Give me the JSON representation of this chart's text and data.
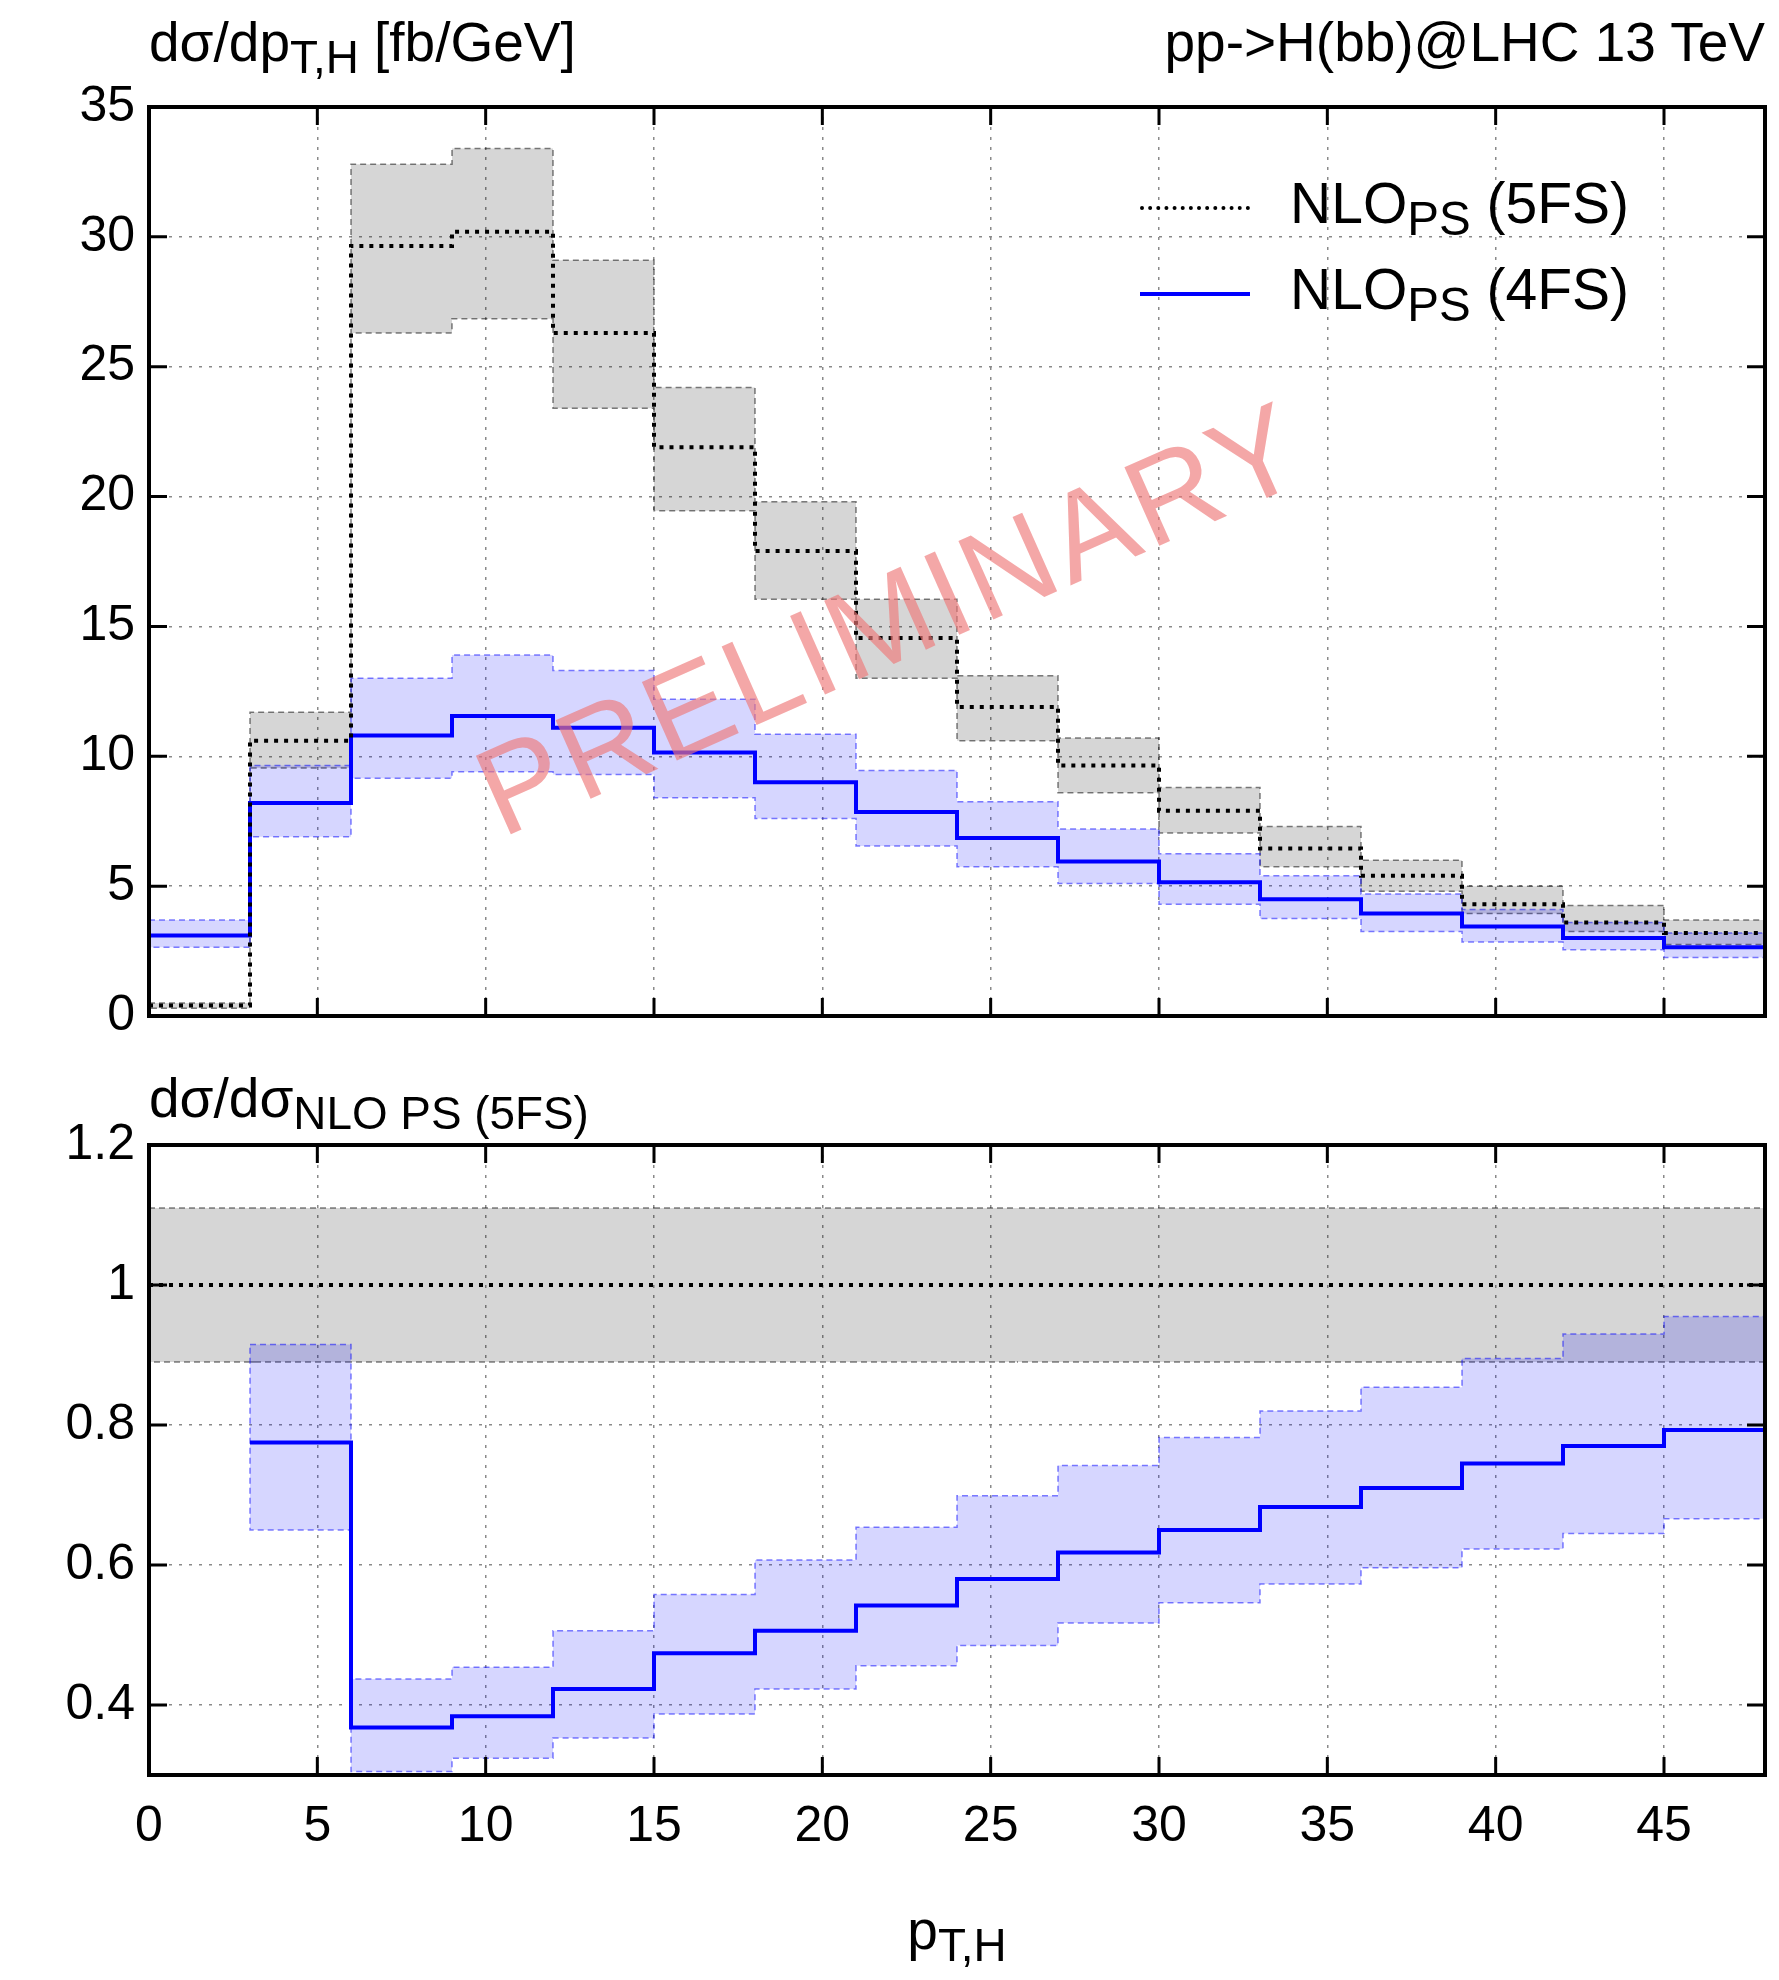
{
  "chart_data": [
    {
      "type": "step",
      "title": "pp->H(bb)@LHC 13 TeV",
      "ylabel": "dσ/dp$_{T,H}$ [fb/GeV]",
      "x": [
        0,
        3,
        6,
        9,
        12,
        15,
        18,
        21,
        24,
        27,
        30,
        33,
        36,
        39,
        42,
        45,
        48
      ],
      "series": [
        {
          "name": "NLO$_{PS}$ (5FS)",
          "color": "#000000",
          "line_style": "dotted",
          "values": [
            0.4,
            10.6,
            29.65,
            30.2,
            26.3,
            21.9,
            17.9,
            14.55,
            11.9,
            9.65,
            7.9,
            6.45,
            5.4,
            4.3,
            3.6,
            3.2,
            3.2
          ],
          "lower": [
            0.3,
            9.55,
            26.3,
            26.85,
            23.4,
            19.45,
            16.05,
            13.0,
            10.6,
            8.6,
            7.05,
            5.75,
            4.8,
            3.95,
            3.25,
            2.75,
            2.75
          ],
          "upper": [
            0.5,
            11.7,
            32.8,
            33.4,
            29.1,
            24.2,
            19.8,
            16.05,
            13.1,
            10.7,
            8.8,
            7.3,
            6.0,
            5.0,
            4.25,
            3.7,
            3.7
          ]
        },
        {
          "name": "NLO$_{PS}$ (4FS)",
          "color": "#0000ff",
          "line_style": "solid",
          "values": [
            3.1,
            8.2,
            10.8,
            11.55,
            11.1,
            10.15,
            9.0,
            7.85,
            6.85,
            5.95,
            5.15,
            4.5,
            3.95,
            3.45,
            3.0,
            2.65,
            2.65
          ],
          "lower": [
            2.65,
            6.9,
            9.15,
            9.4,
            9.3,
            8.4,
            7.6,
            6.55,
            5.75,
            5.1,
            4.3,
            3.75,
            3.25,
            2.85,
            2.55,
            2.25,
            2.25
          ],
          "upper": [
            3.7,
            9.65,
            13.0,
            13.9,
            13.3,
            12.2,
            10.85,
            9.45,
            8.25,
            7.2,
            6.25,
            5.4,
            4.7,
            4.1,
            3.6,
            3.2,
            3.2
          ]
        }
      ],
      "xlim": [
        0,
        48
      ],
      "ylim": [
        0,
        35
      ],
      "xticks": [
        0,
        5,
        10,
        15,
        20,
        25,
        30,
        35,
        40,
        45
      ],
      "yticks": [
        0,
        5,
        10,
        15,
        20,
        25,
        30,
        35
      ],
      "grid": true,
      "legend": "top right",
      "tick_labels": "y",
      "annotations": [
        "PRELIMINARY"
      ]
    },
    {
      "type": "step",
      "ylabel": "dσ/dσ$_{NLO PS (5FS)}$",
      "xlabel": "p$_{T,H}$",
      "x": [
        0,
        3,
        6,
        9,
        12,
        15,
        18,
        21,
        24,
        27,
        30,
        33,
        36,
        39,
        42,
        45,
        48
      ],
      "series": [
        {
          "color": "#000000",
          "line_style": "dotted",
          "values": [
            1,
            1,
            1,
            1,
            1,
            1,
            1,
            1,
            1,
            1,
            1,
            1,
            1,
            1,
            1,
            1,
            1
          ],
          "lower": [
            0.89,
            0.89,
            0.89,
            0.89,
            0.89,
            0.89,
            0.89,
            0.89,
            0.89,
            0.89,
            0.89,
            0.89,
            0.89,
            0.89,
            0.89,
            0.89,
            0.89
          ],
          "upper": [
            1.11,
            1.11,
            1.11,
            1.11,
            1.11,
            1.11,
            1.11,
            1.11,
            1.11,
            1.11,
            1.11,
            1.11,
            1.11,
            1.11,
            1.11,
            1.11,
            1.11
          ]
        },
        {
          "color": "#0000ff",
          "line_style": "solid",
          "values": [
            null,
            0.775,
            0.368,
            0.384,
            0.423,
            0.474,
            0.506,
            0.542,
            0.58,
            0.618,
            0.65,
            0.683,
            0.71,
            0.745,
            0.77,
            0.793,
            0.793
          ],
          "lower": [
            null,
            0.65,
            0.305,
            0.324,
            0.353,
            0.387,
            0.423,
            0.456,
            0.485,
            0.517,
            0.546,
            0.573,
            0.596,
            0.623,
            0.645,
            0.666,
            0.666
          ],
          "upper": [
            null,
            0.915,
            0.437,
            0.454,
            0.506,
            0.558,
            0.607,
            0.654,
            0.699,
            0.742,
            0.782,
            0.82,
            0.854,
            0.895,
            0.93,
            0.955,
            0.955
          ]
        }
      ],
      "xlim": [
        0,
        48
      ],
      "ylim": [
        0.3,
        1.2
      ],
      "xticks": [
        0,
        5,
        10,
        15,
        20,
        25,
        30,
        35,
        40,
        45
      ],
      "yticks": [
        0.4,
        0.6,
        0.8,
        1,
        1.2
      ],
      "grid": true
    }
  ]
}
